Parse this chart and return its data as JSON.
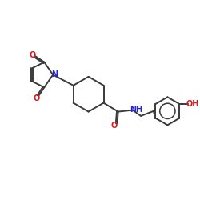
{
  "bg_color": "#ffffff",
  "bond_color": "#3a3a3a",
  "N_color": "#2525cc",
  "O_color": "#cc2020",
  "lw": 1.4,
  "fs": 7.0,
  "xlim": [
    0,
    10
  ],
  "ylim": [
    0,
    10
  ]
}
